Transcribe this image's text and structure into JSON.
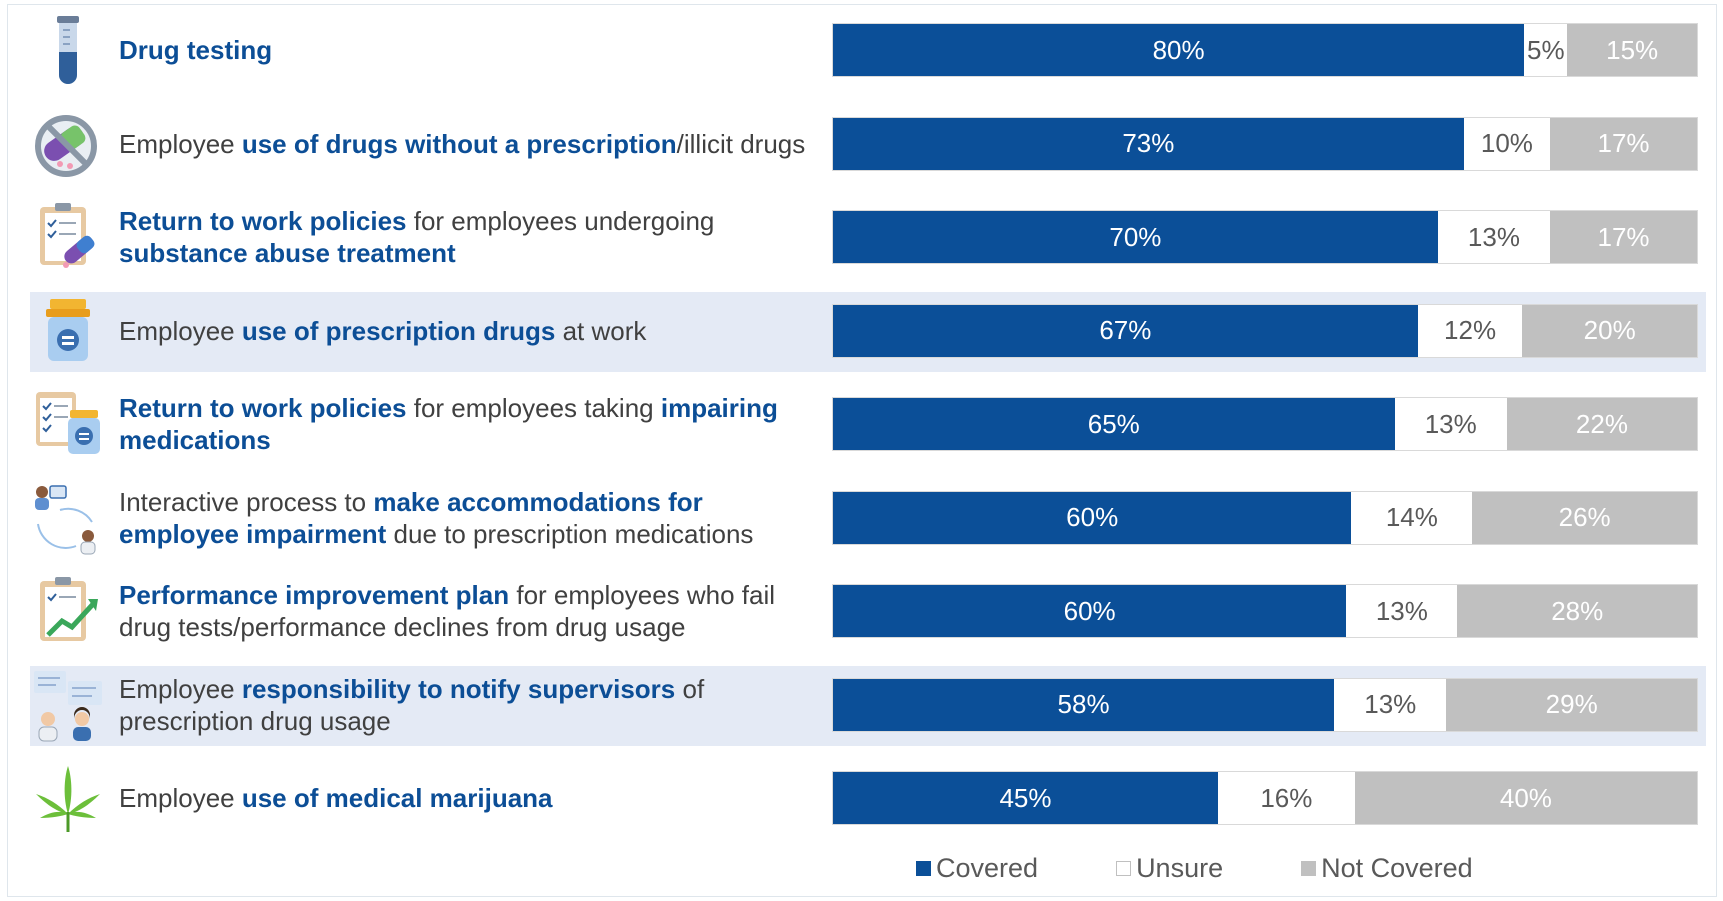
{
  "colors": {
    "covered": "#0b4f98",
    "unsure": "#ffffff",
    "not_covered": "#c0c0c0",
    "highlight_text": "#0c4e96",
    "row_highlight": "#e4eaf5"
  },
  "legend": {
    "covered": "Covered",
    "unsure": "Unsure",
    "not_covered": "Not Covered"
  },
  "rows": [
    {
      "icon": "test-tube-icon",
      "highlight_band": false,
      "label_parts": [
        {
          "text": "Drug testing",
          "bold": true
        }
      ],
      "labels": {
        "covered": "80%",
        "unsure": "5%",
        "not_covered": "15%"
      }
    },
    {
      "icon": "no-pills-icon",
      "highlight_band": false,
      "label_parts": [
        {
          "text": "Employee ",
          "bold": false
        },
        {
          "text": "use of drugs without a prescription",
          "bold": true
        },
        {
          "text": "/illicit drugs",
          "bold": false
        }
      ],
      "labels": {
        "covered": "73%",
        "unsure": "10%",
        "not_covered": "17%"
      }
    },
    {
      "icon": "clipboard-pills-icon",
      "highlight_band": false,
      "label_parts": [
        {
          "text": "Return to work policies",
          "bold": true
        },
        {
          "text": " for employees undergoing ",
          "bold": false
        },
        {
          "text": "substance abuse treatment",
          "bold": true
        }
      ],
      "labels": {
        "covered": "70%",
        "unsure": "13%",
        "not_covered": "17%"
      }
    },
    {
      "icon": "pill-bottle-icon",
      "highlight_band": true,
      "label_parts": [
        {
          "text": "Employee ",
          "bold": false
        },
        {
          "text": "use of prescription drugs",
          "bold": true
        },
        {
          "text": " at work",
          "bold": false
        }
      ],
      "labels": {
        "covered": "67%",
        "unsure": "12%",
        "not_covered": "20%"
      }
    },
    {
      "icon": "clipboard-bottle-icon",
      "highlight_band": false,
      "label_parts": [
        {
          "text": "Return to work policies",
          "bold": true
        },
        {
          "text": " for employees taking ",
          "bold": false
        },
        {
          "text": "impairing medications",
          "bold": true
        }
      ],
      "labels": {
        "covered": "65%",
        "unsure": "13%",
        "not_covered": "22%"
      }
    },
    {
      "icon": "interactive-process-icon",
      "highlight_band": false,
      "label_parts": [
        {
          "text": "Interactive process to ",
          "bold": false
        },
        {
          "text": "make accommodations for employee impairment",
          "bold": true
        },
        {
          "text": " due to prescription medications",
          "bold": false
        }
      ],
      "labels": {
        "covered": "60%",
        "unsure": "14%",
        "not_covered": "26%"
      }
    },
    {
      "icon": "improvement-chart-icon",
      "highlight_band": false,
      "label_parts": [
        {
          "text": "Performance improvement plan",
          "bold": true
        },
        {
          "text": " for employees who fail drug tests/performance declines from drug usage",
          "bold": false
        }
      ],
      "labels": {
        "covered": "60%",
        "unsure": "13%",
        "not_covered": "28%"
      }
    },
    {
      "icon": "notify-supervisors-icon",
      "highlight_band": true,
      "label_parts": [
        {
          "text": "Employee ",
          "bold": false
        },
        {
          "text": "responsibility to notify supervisors",
          "bold": true
        },
        {
          "text": " of prescription drug usage",
          "bold": false
        }
      ],
      "labels": {
        "covered": "58%",
        "unsure": "13%",
        "not_covered": "29%"
      }
    },
    {
      "icon": "cannabis-leaf-icon",
      "highlight_band": false,
      "label_parts": [
        {
          "text": "Employee ",
          "bold": false
        },
        {
          "text": "use of medical marijuana",
          "bold": true
        }
      ],
      "labels": {
        "covered": "45%",
        "unsure": "16%",
        "not_covered": "40%"
      }
    }
  ],
  "chart_data": {
    "type": "bar",
    "orientation": "horizontal",
    "stacked": true,
    "categories": [
      "Drug testing",
      "Employee use of drugs without a prescription/illicit drugs",
      "Return to work policies for employees undergoing substance abuse treatment",
      "Employee use of prescription drugs at work",
      "Return to work policies for employees taking impairing medications",
      "Interactive process to make accommodations for employee impairment due to prescription medications",
      "Performance improvement plan for employees who fail drug tests/performance declines from drug usage",
      "Employee responsibility to notify supervisors of prescription drug usage",
      "Employee use of medical marijuana"
    ],
    "series": [
      {
        "name": "Covered",
        "values": [
          80,
          73,
          70,
          67,
          65,
          60,
          60,
          58,
          45
        ]
      },
      {
        "name": "Unsure",
        "values": [
          5,
          10,
          13,
          12,
          13,
          14,
          13,
          13,
          16
        ]
      },
      {
        "name": "Not Covered",
        "values": [
          15,
          17,
          17,
          20,
          22,
          26,
          28,
          29,
          40
        ]
      }
    ],
    "xlim": [
      0,
      100
    ],
    "legend_position": "bottom",
    "grid": false
  }
}
